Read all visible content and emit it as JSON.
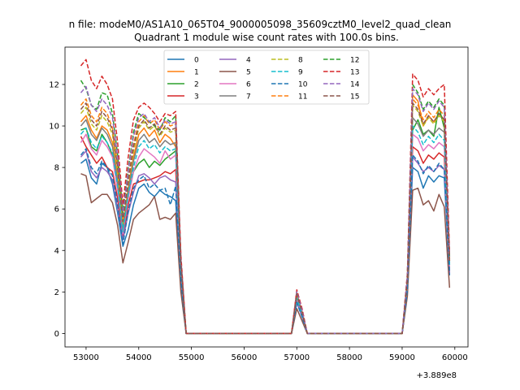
{
  "suptitle": "n file: modeM0/AS1A10_065T04_9000005098_35609cztM0_level2_quad_clean",
  "chart_data": {
    "type": "line",
    "title": "Quadrant 1 module wise count rates with 100.0s bins.",
    "xlabel": "",
    "ylabel": "",
    "x_offset_label": "+3.889e8",
    "xlim": [
      52600,
      60250
    ],
    "ylim": [
      -0.65,
      13.8
    ],
    "xticks": [
      53000,
      54000,
      55000,
      56000,
      57000,
      58000,
      59000,
      60000
    ],
    "yticks": [
      0,
      2,
      4,
      6,
      8,
      10,
      12
    ],
    "legend_position": "top-center",
    "legend_columns": 4,
    "x": [
      52900,
      53000,
      53100,
      53200,
      53300,
      53400,
      53500,
      53600,
      53700,
      53800,
      53900,
      54000,
      54100,
      54200,
      54300,
      54400,
      54500,
      54600,
      54700,
      54800,
      54900,
      55000,
      55500,
      56000,
      56500,
      56900,
      57000,
      57100,
      57200,
      57500,
      58000,
      58500,
      58900,
      59000,
      59100,
      59200,
      59300,
      59400,
      59500,
      59600,
      59700,
      59800,
      59900
    ],
    "series": [
      {
        "name": "0",
        "color": "#1f77b4",
        "dash": false,
        "values": [
          8.2,
          8.4,
          7.5,
          7.2,
          8.2,
          8.0,
          7.2,
          5.8,
          4.2,
          5.0,
          6.2,
          7.0,
          7.2,
          6.8,
          6.6,
          6.9,
          6.7,
          6.6,
          6.4,
          2.5,
          0.0,
          0.0,
          0.0,
          0.0,
          0.0,
          0.0,
          1.5,
          0.8,
          0.0,
          0.0,
          0.0,
          0.0,
          0.0,
          0.0,
          2.0,
          8.0,
          7.8,
          7.0,
          7.6,
          7.3,
          7.6,
          7.5,
          2.8
        ]
      },
      {
        "name": "1",
        "color": "#ff7f0e",
        "dash": false,
        "values": [
          10.2,
          10.5,
          9.8,
          9.4,
          10.0,
          9.8,
          9.2,
          7.5,
          5.2,
          7.0,
          8.5,
          9.6,
          9.9,
          9.5,
          9.8,
          9.2,
          9.6,
          9.4,
          9.0,
          3.2,
          0.0,
          0.0,
          0.0,
          0.0,
          0.0,
          0.0,
          1.8,
          1.0,
          0.0,
          0.0,
          0.0,
          0.0,
          0.0,
          0.0,
          2.5,
          11.5,
          11.2,
          10.0,
          10.5,
          10.2,
          10.6,
          10.3,
          3.5
        ]
      },
      {
        "name": "2",
        "color": "#2ca02c",
        "dash": false,
        "values": [
          9.8,
          9.9,
          9.0,
          8.8,
          9.6,
          9.2,
          8.6,
          7.0,
          4.9,
          6.6,
          7.8,
          8.2,
          8.4,
          8.0,
          8.3,
          8.1,
          8.4,
          8.6,
          8.8,
          3.0,
          0.0,
          0.0,
          0.0,
          0.0,
          0.0,
          0.0,
          1.6,
          0.9,
          0.0,
          0.0,
          0.0,
          0.0,
          0.0,
          0.0,
          2.3,
          9.8,
          10.3,
          9.6,
          9.8,
          9.5,
          10.9,
          9.9,
          3.3
        ]
      },
      {
        "name": "3",
        "color": "#d62728",
        "dash": false,
        "values": [
          9.5,
          9.0,
          8.6,
          8.2,
          8.5,
          8.0,
          7.8,
          6.5,
          4.6,
          6.2,
          7.2,
          7.3,
          7.4,
          7.4,
          7.5,
          7.6,
          7.8,
          7.7,
          7.9,
          2.8,
          0.0,
          0.0,
          0.0,
          0.0,
          0.0,
          0.0,
          1.6,
          0.9,
          0.0,
          0.0,
          0.0,
          0.0,
          0.0,
          0.0,
          2.2,
          9.0,
          8.8,
          8.2,
          8.6,
          8.4,
          8.7,
          8.5,
          3.0
        ]
      },
      {
        "name": "4",
        "color": "#9467bd",
        "dash": false,
        "values": [
          8.5,
          8.8,
          7.8,
          7.5,
          8.0,
          7.8,
          7.4,
          6.0,
          4.5,
          5.8,
          6.8,
          7.6,
          7.7,
          7.5,
          7.2,
          7.5,
          7.6,
          7.4,
          7.3,
          2.6,
          0.0,
          0.0,
          0.0,
          0.0,
          0.0,
          0.0,
          1.5,
          0.8,
          0.0,
          0.0,
          0.0,
          0.0,
          0.0,
          0.0,
          2.1,
          8.5,
          8.2,
          7.8,
          8.0,
          7.8,
          8.1,
          7.9,
          2.9
        ]
      },
      {
        "name": "5",
        "color": "#8c564b",
        "dash": false,
        "values": [
          7.7,
          7.6,
          6.3,
          6.5,
          6.7,
          6.7,
          6.3,
          5.2,
          3.4,
          4.4,
          5.5,
          5.8,
          6.0,
          6.2,
          6.6,
          5.5,
          5.6,
          5.5,
          5.8,
          2.0,
          0.0,
          0.0,
          0.0,
          0.0,
          0.0,
          0.0,
          1.2,
          0.6,
          0.0,
          0.0,
          0.0,
          0.0,
          0.0,
          0.0,
          1.8,
          6.9,
          7.0,
          6.2,
          6.4,
          5.9,
          6.7,
          6.1,
          2.2
        ]
      },
      {
        "name": "6",
        "color": "#e377c2",
        "dash": false,
        "values": [
          9.2,
          9.6,
          8.9,
          8.6,
          9.3,
          9.0,
          8.5,
          6.9,
          4.8,
          6.5,
          7.8,
          8.5,
          8.9,
          8.7,
          8.5,
          8.2,
          8.8,
          8.4,
          8.6,
          3.0,
          0.0,
          0.0,
          0.0,
          0.0,
          0.0,
          0.0,
          1.7,
          0.9,
          0.0,
          0.0,
          0.0,
          0.0,
          0.0,
          0.0,
          2.3,
          9.6,
          9.4,
          8.8,
          9.1,
          8.9,
          9.2,
          9.0,
          3.2
        ]
      },
      {
        "name": "7",
        "color": "#7f7f7f",
        "dash": false,
        "values": [
          10.0,
          10.3,
          9.6,
          9.3,
          9.9,
          9.6,
          9.0,
          7.3,
          5.0,
          6.8,
          8.3,
          9.3,
          9.6,
          9.2,
          9.4,
          9.0,
          9.3,
          9.1,
          9.2,
          3.2,
          0.0,
          0.0,
          0.0,
          0.0,
          0.0,
          0.0,
          1.8,
          1.0,
          0.0,
          0.0,
          0.0,
          0.0,
          0.0,
          0.0,
          2.4,
          10.4,
          10.1,
          9.5,
          9.8,
          9.6,
          9.9,
          9.7,
          3.4
        ]
      },
      {
        "name": "8",
        "color": "#bcbd22",
        "dash": true,
        "values": [
          10.6,
          10.9,
          10.1,
          9.8,
          10.5,
          10.2,
          9.6,
          7.8,
          5.3,
          7.2,
          8.8,
          9.9,
          10.2,
          9.8,
          10.0,
          9.5,
          9.9,
          9.7,
          9.8,
          3.4,
          0.0,
          0.0,
          0.0,
          0.0,
          0.0,
          0.0,
          1.9,
          1.0,
          0.0,
          0.0,
          0.0,
          0.0,
          0.0,
          0.0,
          2.6,
          11.0,
          10.7,
          10.0,
          10.4,
          10.1,
          10.5,
          10.2,
          3.5
        ]
      },
      {
        "name": "9",
        "color": "#17becf",
        "dash": true,
        "values": [
          9.6,
          9.9,
          9.2,
          8.9,
          9.5,
          9.2,
          8.7,
          7.1,
          4.9,
          6.7,
          8.0,
          9.0,
          9.3,
          8.9,
          9.1,
          8.7,
          9.0,
          8.8,
          8.9,
          3.1,
          0.0,
          0.0,
          0.0,
          0.0,
          0.0,
          0.0,
          1.7,
          0.9,
          0.0,
          0.0,
          0.0,
          0.0,
          0.0,
          0.0,
          2.4,
          10.0,
          9.7,
          9.1,
          9.5,
          9.2,
          9.6,
          9.3,
          3.3
        ]
      },
      {
        "name": "10",
        "color": "#1f77b4",
        "dash": true,
        "values": [
          8.6,
          8.9,
          8.0,
          7.7,
          8.3,
          8.0,
          7.6,
          6.2,
          4.3,
          5.9,
          7.0,
          7.4,
          7.6,
          7.0,
          7.2,
          6.9,
          7.0,
          6.2,
          7.1,
          2.6,
          0.0,
          0.0,
          0.0,
          0.0,
          0.0,
          0.0,
          1.5,
          0.8,
          0.0,
          0.0,
          0.0,
          0.0,
          0.0,
          0.0,
          2.1,
          8.6,
          8.3,
          7.7,
          8.1,
          7.8,
          8.2,
          7.9,
          2.9
        ]
      },
      {
        "name": "11",
        "color": "#ff7f0e",
        "dash": true,
        "values": [
          11.0,
          11.3,
          10.5,
          10.2,
          10.9,
          10.6,
          9.9,
          8.1,
          5.5,
          7.4,
          9.1,
          10.2,
          10.5,
          10.1,
          10.3,
          9.8,
          10.2,
          10.0,
          10.1,
          3.5,
          0.0,
          0.0,
          0.0,
          0.0,
          0.0,
          0.0,
          2.0,
          1.1,
          0.0,
          0.0,
          0.0,
          0.0,
          0.0,
          0.0,
          2.7,
          11.3,
          11.0,
          10.3,
          10.7,
          10.4,
          10.8,
          10.5,
          3.6
        ]
      },
      {
        "name": "12",
        "color": "#2ca02c",
        "dash": true,
        "values": [
          12.2,
          11.8,
          11.0,
          10.8,
          11.6,
          11.5,
          10.6,
          8.6,
          5.8,
          7.9,
          9.7,
          10.6,
          10.4,
          10.2,
          10.0,
          9.8,
          10.4,
          10.2,
          10.5,
          3.6,
          0.0,
          0.0,
          0.0,
          0.0,
          0.0,
          0.0,
          2.0,
          1.1,
          0.0,
          0.0,
          0.0,
          0.0,
          0.0,
          0.0,
          2.8,
          12.0,
          11.6,
          10.8,
          11.2,
          10.9,
          11.3,
          11.0,
          3.7
        ]
      },
      {
        "name": "13",
        "color": "#d62728",
        "dash": true,
        "values": [
          12.9,
          13.2,
          12.2,
          11.8,
          12.4,
          12.0,
          11.3,
          9.2,
          6.2,
          8.5,
          10.3,
          10.9,
          11.1,
          10.9,
          10.6,
          10.2,
          10.6,
          10.5,
          10.7,
          3.8,
          0.0,
          0.0,
          0.0,
          0.0,
          0.0,
          0.0,
          2.1,
          1.2,
          0.0,
          0.0,
          0.0,
          0.0,
          0.0,
          0.0,
          2.9,
          12.5,
          12.2,
          11.4,
          11.8,
          11.5,
          11.8,
          12.0,
          3.9
        ]
      },
      {
        "name": "14",
        "color": "#9467bd",
        "dash": true,
        "values": [
          11.6,
          11.9,
          11.0,
          10.7,
          11.3,
          11.0,
          10.4,
          8.5,
          5.7,
          7.8,
          9.5,
          10.4,
          10.6,
          10.2,
          10.4,
          9.9,
          10.3,
          10.1,
          10.2,
          3.6,
          0.0,
          0.0,
          0.0,
          0.0,
          0.0,
          0.0,
          2.0,
          1.1,
          0.0,
          0.0,
          0.0,
          0.0,
          0.0,
          0.0,
          2.8,
          11.8,
          11.5,
          10.7,
          11.1,
          10.8,
          11.2,
          10.9,
          3.7
        ]
      },
      {
        "name": "15",
        "color": "#8c564b",
        "dash": true,
        "values": [
          10.8,
          11.1,
          10.3,
          10.0,
          10.7,
          10.4,
          9.8,
          8.0,
          5.4,
          7.3,
          9.0,
          10.0,
          10.3,
          9.9,
          10.1,
          9.6,
          10.0,
          9.8,
          9.9,
          3.4,
          0.0,
          0.0,
          0.0,
          0.0,
          0.0,
          0.0,
          1.9,
          1.0,
          0.0,
          0.0,
          0.0,
          0.0,
          0.0,
          0.0,
          2.6,
          11.1,
          10.8,
          10.1,
          10.5,
          10.2,
          10.6,
          10.3,
          3.5
        ]
      }
    ]
  }
}
